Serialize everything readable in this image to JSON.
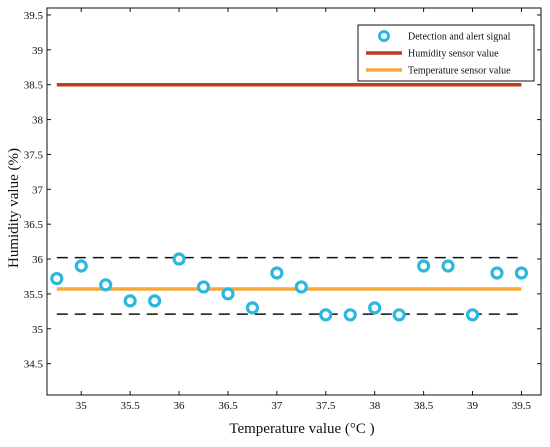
{
  "chart_data": {
    "type": "scatter",
    "xlabel": "Temperature value (°C )",
    "ylabel": "Humidity value (%)",
    "xlim": [
      34.65,
      39.7
    ],
    "ylim": [
      34.05,
      39.6
    ],
    "xticks": [
      35,
      35.5,
      36,
      36.5,
      37,
      37.5,
      38,
      38.5,
      39,
      39.5
    ],
    "xtick_labels": [
      "35",
      "35.5",
      "36",
      "36.5",
      "37",
      "37.5",
      "38",
      "38.5",
      "39",
      "39.5"
    ],
    "yticks": [
      34.5,
      35,
      35.5,
      36,
      36.5,
      37,
      37.5,
      38,
      38.5,
      39,
      39.5
    ],
    "ytick_labels": [
      "34.5",
      "35",
      "35.5",
      "36",
      "36.5",
      "37",
      "37.5",
      "38",
      "38.5",
      "39",
      "39.5"
    ],
    "grid": false,
    "legend_position": "top-right",
    "series": [
      {
        "name": "Detection and alert signal",
        "kind": "scatter",
        "marker": "ring",
        "color": "#2bb7e0",
        "points": [
          {
            "x": 34.75,
            "y": 35.72
          },
          {
            "x": 35.0,
            "y": 35.9
          },
          {
            "x": 35.25,
            "y": 35.63
          },
          {
            "x": 35.5,
            "y": 35.4
          },
          {
            "x": 35.75,
            "y": 35.4
          },
          {
            "x": 36.0,
            "y": 36.0
          },
          {
            "x": 36.25,
            "y": 35.6
          },
          {
            "x": 36.5,
            "y": 35.5
          },
          {
            "x": 36.75,
            "y": 35.3
          },
          {
            "x": 37.0,
            "y": 35.8
          },
          {
            "x": 37.25,
            "y": 35.6
          },
          {
            "x": 37.5,
            "y": 35.2
          },
          {
            "x": 37.75,
            "y": 35.2
          },
          {
            "x": 38.0,
            "y": 35.3
          },
          {
            "x": 38.25,
            "y": 35.2
          },
          {
            "x": 38.5,
            "y": 35.9
          },
          {
            "x": 38.75,
            "y": 35.9
          },
          {
            "x": 39.0,
            "y": 35.2
          },
          {
            "x": 39.25,
            "y": 35.8
          },
          {
            "x": 39.5,
            "y": 35.8
          }
        ]
      },
      {
        "name": "Humidity sensor value",
        "kind": "line",
        "color": "#c23b22",
        "x": [
          34.75,
          39.5
        ],
        "y": [
          38.5,
          38.5
        ]
      },
      {
        "name": "Temperature sensor value",
        "kind": "line",
        "color": "#f5a83c",
        "x": [
          34.75,
          39.5
        ],
        "y": [
          35.57,
          35.57
        ]
      }
    ],
    "reference_lines": [
      {
        "kind": "dashed",
        "color": "#111111",
        "x": [
          34.75,
          39.5
        ],
        "y": [
          36.02,
          36.02
        ]
      },
      {
        "kind": "dashed",
        "color": "#111111",
        "x": [
          34.75,
          39.5
        ],
        "y": [
          35.21,
          35.21
        ]
      }
    ]
  }
}
